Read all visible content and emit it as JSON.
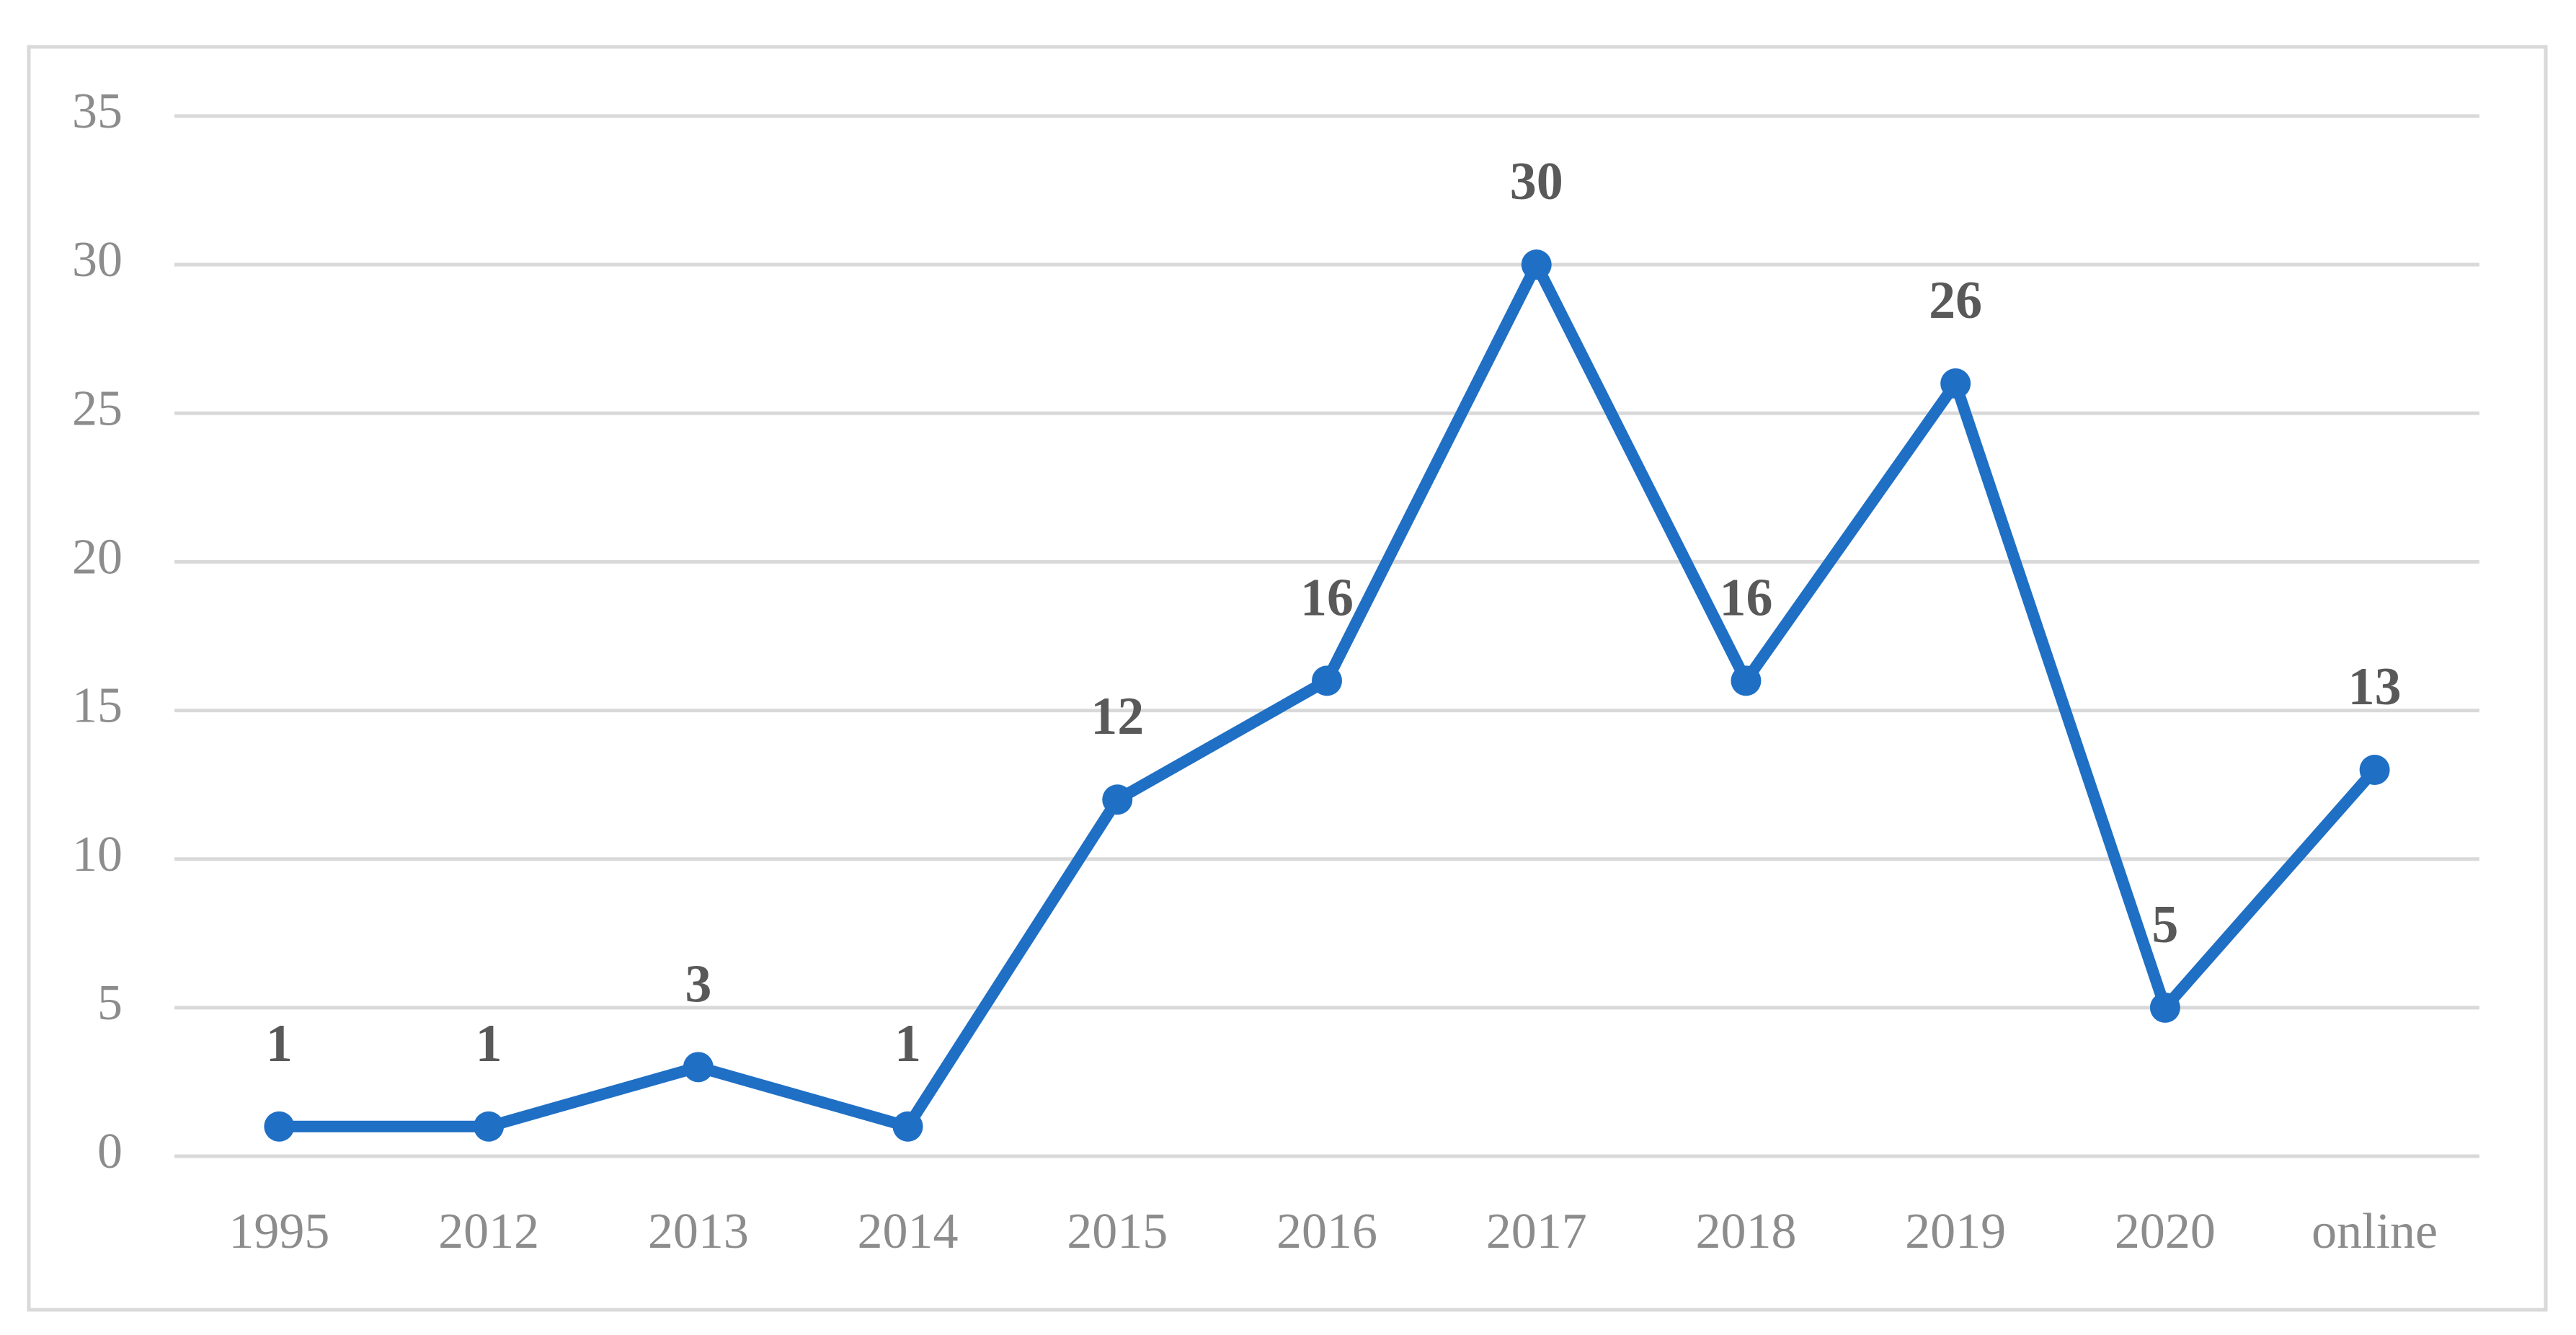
{
  "chart_data": {
    "type": "line",
    "categories": [
      "1995",
      "2012",
      "2013",
      "2014",
      "2015",
      "2016",
      "2017",
      "2018",
      "2019",
      "2020",
      "online"
    ],
    "values": [
      1,
      1,
      3,
      1,
      12,
      16,
      30,
      16,
      26,
      5,
      13
    ],
    "color": "#1f6fc5",
    "ylim": [
      0,
      35
    ],
    "yticks": [
      0,
      5,
      10,
      15,
      20,
      25,
      30,
      35
    ],
    "grid": true
  }
}
